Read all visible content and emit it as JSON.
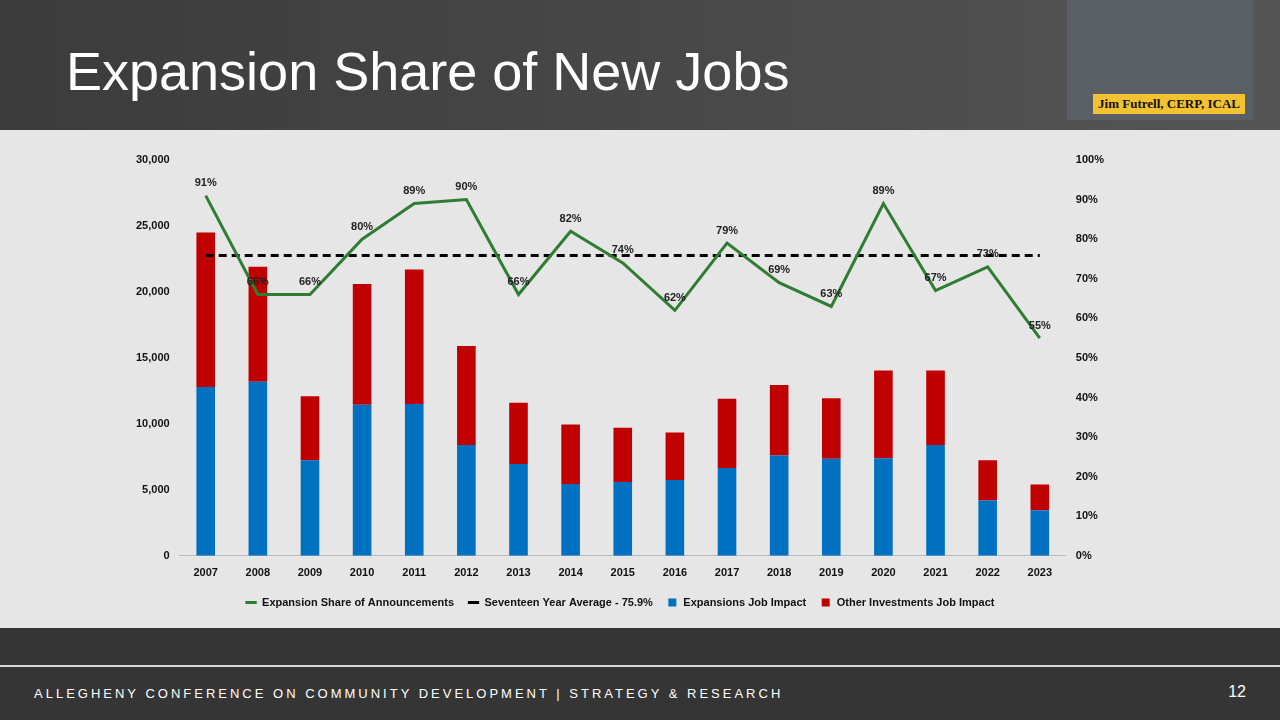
{
  "slide": {
    "footer": "ALLEGHENY CONFERENCE ON COMMUNITY DEVELOPMENT   |   STRATEGY & RESEARCH",
    "page_number": "12",
    "presenter": "Jim Futrell, CERP, ICAL"
  },
  "chart_data": {
    "type": "bar",
    "title": "Expansion Share of New Jobs",
    "stacked": true,
    "grid": false,
    "legend": "bottom",
    "categories": [
      "2007",
      "2008",
      "2009",
      "2010",
      "2011",
      "2012",
      "2013",
      "2014",
      "2015",
      "2016",
      "2017",
      "2018",
      "2019",
      "2020",
      "2021",
      "2022",
      "2023"
    ],
    "ylim": [
      0,
      30000
    ],
    "yticks": [
      0,
      {
        "value": 5000,
        "label": "5,000"
      },
      {
        "value": 10000,
        "label": "10,000"
      },
      {
        "value": 15000,
        "label": "15,000"
      },
      {
        "value": 20000,
        "label": "20,000"
      },
      {
        "value": 25000,
        "label": "25,000"
      },
      {
        "value": 30000,
        "label": "30,000"
      }
    ],
    "y2lim": [
      0,
      100
    ],
    "y2ticks": [
      {
        "value": 0,
        "label": "0%"
      },
      {
        "value": 10,
        "label": "10%"
      },
      {
        "value": 20,
        "label": "20%"
      },
      {
        "value": 30,
        "label": "30%"
      },
      {
        "value": 40,
        "label": "40%"
      },
      {
        "value": 50,
        "label": "50%"
      },
      {
        "value": 60,
        "label": "60%"
      },
      {
        "value": 70,
        "label": "70%"
      },
      {
        "value": 80,
        "label": "80%"
      },
      {
        "value": 90,
        "label": "90%"
      },
      {
        "value": 100,
        "label": "100%"
      }
    ],
    "series": [
      {
        "name": "Expansions Job Impact",
        "type": "bar",
        "color": "#0070c0",
        "values": [
          12800,
          13200,
          7250,
          11450,
          11500,
          8400,
          6950,
          5450,
          5600,
          5750,
          6650,
          7600,
          7350,
          7400,
          8400,
          4200,
          3450
        ]
      },
      {
        "name": "Other Investments Job Impact",
        "type": "bar",
        "color": "#c00000",
        "values": [
          11700,
          8700,
          4850,
          9150,
          10200,
          7500,
          4650,
          4500,
          4100,
          3600,
          5250,
          5350,
          4600,
          6650,
          5650,
          3050,
          1950
        ]
      },
      {
        "name": "Expansion Share of Announcements",
        "type": "line",
        "axis": "y2",
        "color": "#2e7d32",
        "marker": "none",
        "line_style": "solid",
        "data_labels": true,
        "values": [
          91,
          66,
          66,
          80,
          89,
          90,
          66,
          82,
          74,
          62,
          79,
          69,
          63,
          89,
          67,
          73,
          55
        ],
        "value_labels": [
          "91%",
          "66%",
          "66%",
          "80%",
          "89%",
          "90%",
          "66%",
          "82%",
          "74%",
          "62%",
          "79%",
          "69%",
          "63%",
          "89%",
          "67%",
          "73%",
          "55%"
        ]
      },
      {
        "name": "Seventeen Year Average - 75.9%",
        "type": "line",
        "axis": "y2",
        "color": "#000000",
        "marker": "none",
        "line_style": "dashed",
        "values": [
          75.9,
          75.9,
          75.9,
          75.9,
          75.9,
          75.9,
          75.9,
          75.9,
          75.9,
          75.9,
          75.9,
          75.9,
          75.9,
          75.9,
          75.9,
          75.9,
          75.9
        ]
      }
    ]
  }
}
